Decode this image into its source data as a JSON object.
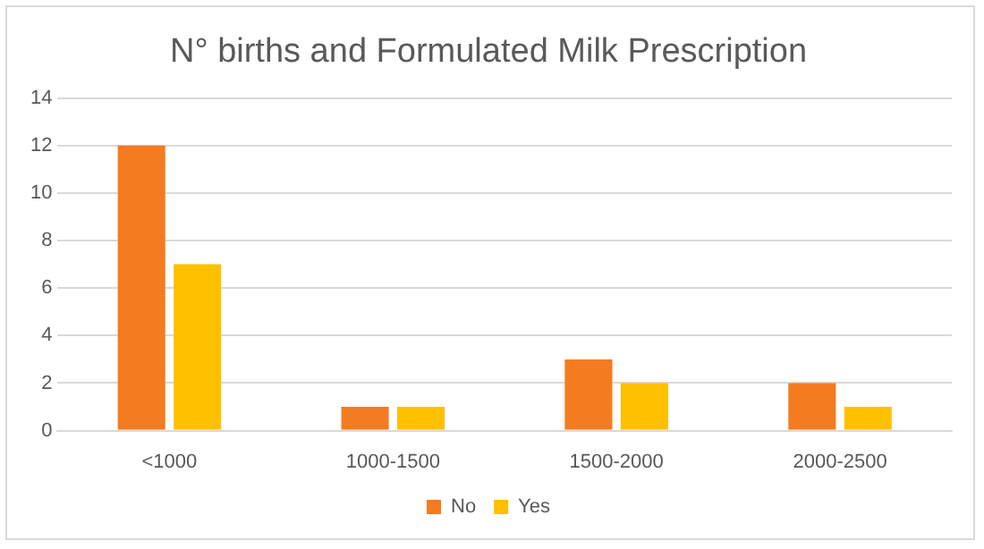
{
  "chart_data": {
    "type": "bar",
    "title": "N° births and Formulated Milk Prescription",
    "categories": [
      "<1000",
      "1000-1500",
      "1500-2000",
      "2000-2500"
    ],
    "series": [
      {
        "name": "No",
        "color": "#f47b20",
        "values": [
          12,
          1,
          3,
          2
        ]
      },
      {
        "name": "Yes",
        "color": "#ffc000",
        "values": [
          7,
          1,
          2,
          1
        ]
      }
    ],
    "ylim": [
      0,
      14
    ],
    "yticks": [
      0,
      2,
      4,
      6,
      8,
      10,
      12,
      14
    ],
    "grid": "y",
    "legend": "bottom"
  }
}
